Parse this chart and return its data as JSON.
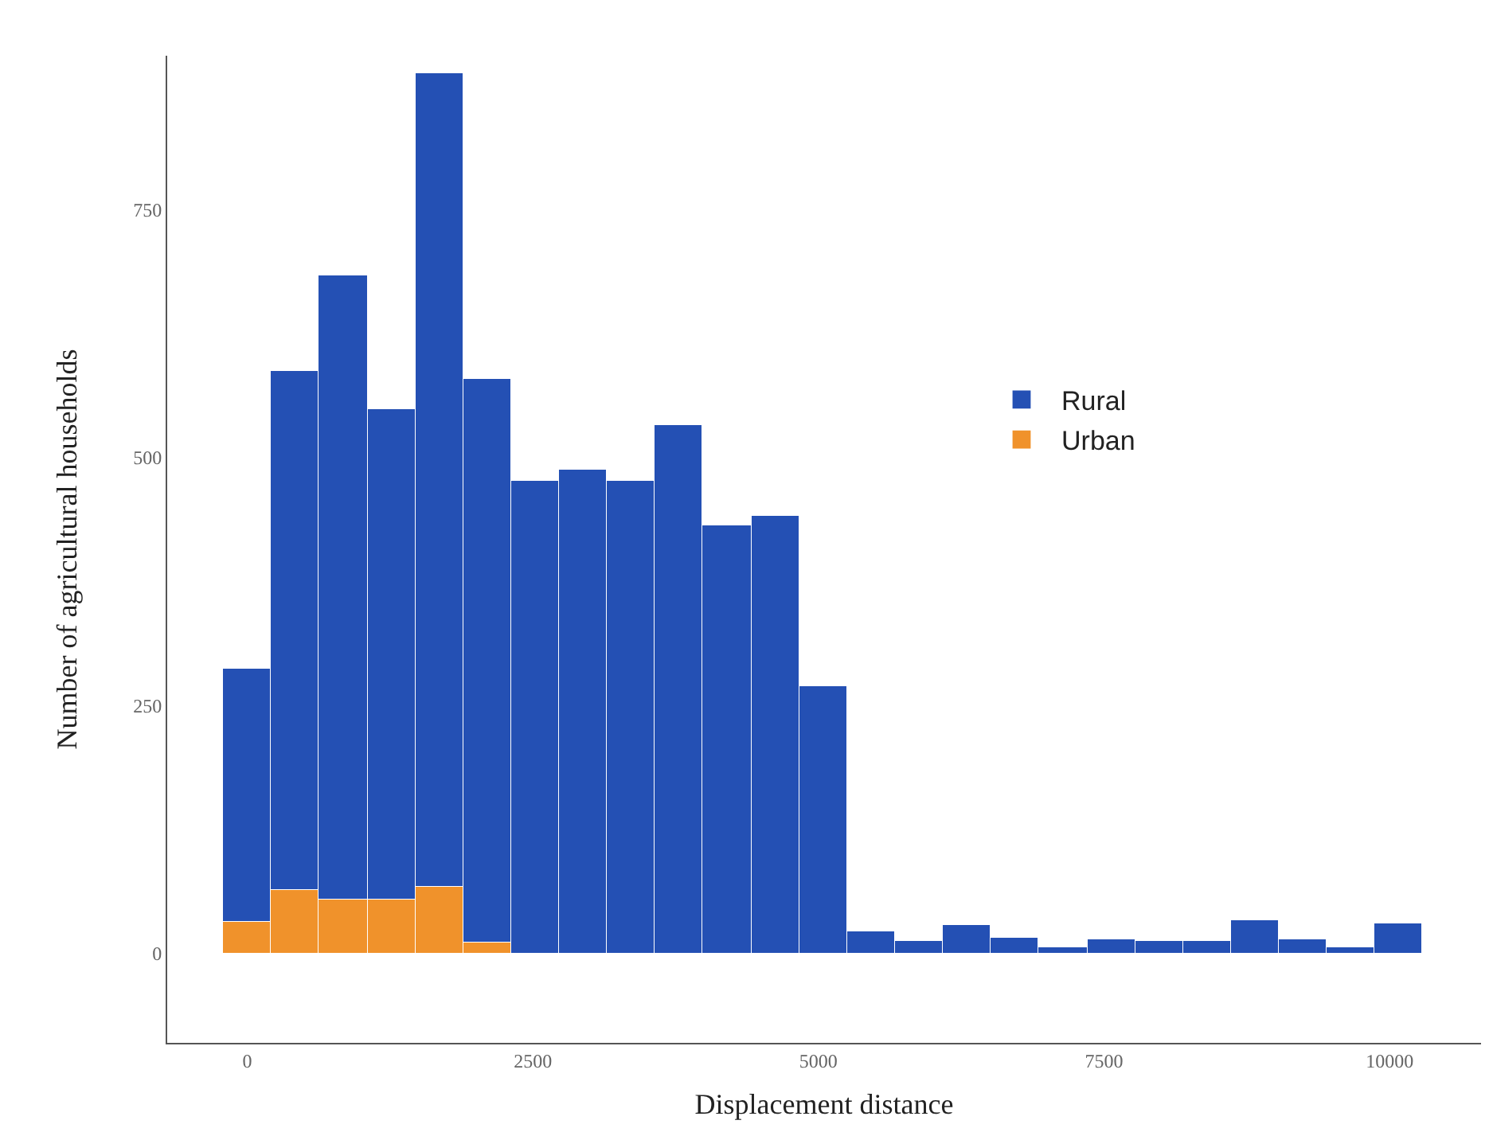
{
  "chart_data": {
    "type": "bar",
    "xlabel": "Displacement distance",
    "ylabel": "Number of agricultural households",
    "x": [
      0,
      420,
      840,
      1260,
      1680,
      2100,
      2520,
      2940,
      3360,
      3780,
      4200,
      4620,
      5040,
      5460,
      5880,
      6300,
      6720,
      7140,
      7560,
      7980,
      8400,
      8820,
      9240,
      9660,
      10080
    ],
    "stacked": true,
    "series": [
      {
        "name": "Urban",
        "color": "#f0922b",
        "values": [
          32,
          64,
          54,
          54,
          67,
          11,
          0,
          0,
          0,
          0,
          0,
          0,
          0,
          0,
          0,
          0,
          0,
          0,
          0,
          0,
          0,
          0,
          0,
          0,
          0
        ]
      },
      {
        "name": "Rural",
        "color": "#2450b4",
        "values": [
          255,
          524,
          629,
          494,
          821,
          568,
          476,
          487,
          476,
          532,
          431,
          442,
          269,
          22,
          13,
          29,
          16,
          6,
          14,
          13,
          13,
          34,
          14,
          6,
          30
        ]
      }
    ],
    "xlim": [
      -700,
      10800
    ],
    "xticks": [
      0,
      2500,
      5000,
      7500,
      10000
    ],
    "ylim": [
      -90,
      905
    ],
    "yticks": [
      0,
      250,
      500,
      750
    ],
    "grid": false,
    "legend": "right"
  }
}
